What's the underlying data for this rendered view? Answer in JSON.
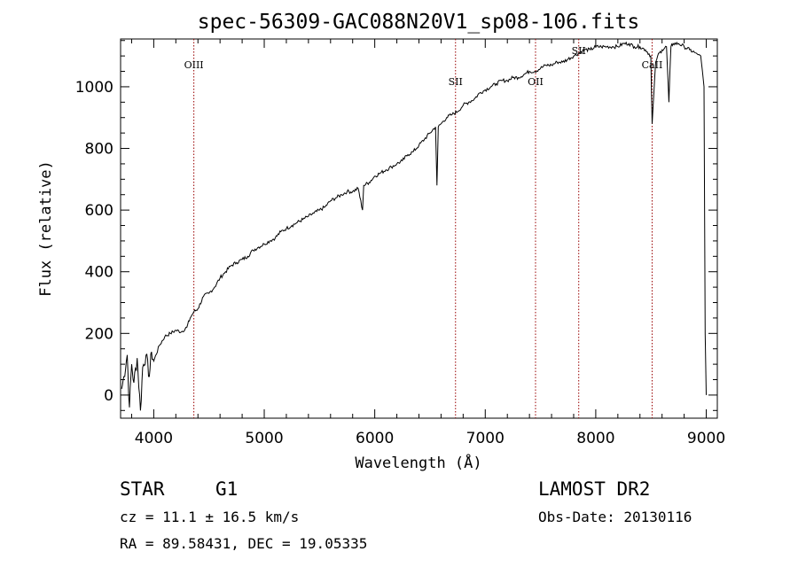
{
  "chart_data": {
    "type": "line",
    "title": "spec-56309-GAC088N20V1_sp08-106.fits",
    "xlabel": "Wavelength (Å)",
    "ylabel": "Flux (relative)",
    "xlim": [
      3700,
      9100
    ],
    "ylim": [
      -75,
      1155
    ],
    "x_ticks": [
      4000,
      5000,
      6000,
      7000,
      8000,
      9000
    ],
    "y_ticks": [
      0,
      200,
      400,
      600,
      800,
      1000
    ],
    "grid": false,
    "line_color": "#000000",
    "spectral_lines": [
      {
        "name": "OIII",
        "wavelength": 4363
      },
      {
        "name": "SII",
        "wavelength": 6731
      },
      {
        "name": "OII",
        "wavelength": 7455
      },
      {
        "name": "SII",
        "wavelength": 7846
      },
      {
        "name": "CaII",
        "wavelength": 8510
      }
    ],
    "spectral_line_color": "#990000",
    "series": [
      {
        "x": [
          3710,
          3730,
          3760,
          3780,
          3800,
          3820,
          3850,
          3880,
          3900,
          3930,
          3960,
          3980,
          4000,
          4050,
          4100,
          4150,
          4200,
          4250,
          4300,
          4330,
          4363,
          4400,
          4450,
          4500,
          4550,
          4600,
          4650,
          4700,
          4750,
          4800,
          4850,
          4900,
          4950,
          5000,
          5050,
          5100,
          5150,
          5200,
          5250,
          5300,
          5350,
          5400,
          5450,
          5500,
          5550,
          5600,
          5650,
          5700,
          5750,
          5800,
          5850,
          5890,
          5900,
          5950,
          6000,
          6050,
          6100,
          6150,
          6200,
          6250,
          6300,
          6350,
          6400,
          6450,
          6500,
          6550,
          6563,
          6575,
          6600,
          6650,
          6700,
          6750,
          6800,
          6850,
          6900,
          6950,
          7000,
          7050,
          7100,
          7150,
          7200,
          7250,
          7300,
          7350,
          7400,
          7450,
          7500,
          7550,
          7600,
          7650,
          7700,
          7750,
          7800,
          7850,
          7900,
          7950,
          8000,
          8050,
          8100,
          8150,
          8200,
          8250,
          8300,
          8350,
          8400,
          8450,
          8498,
          8510,
          8542,
          8560,
          8600,
          8640,
          8662,
          8680,
          8700,
          8750,
          8800,
          8850,
          8900,
          8950,
          8980,
          8990,
          9000
        ],
        "y": [
          20,
          60,
          130,
          -40,
          100,
          40,
          120,
          -50,
          90,
          130,
          60,
          140,
          110,
          160,
          190,
          200,
          210,
          205,
          220,
          250,
          270,
          280,
          320,
          330,
          350,
          380,
          400,
          420,
          430,
          440,
          450,
          470,
          480,
          490,
          500,
          510,
          530,
          540,
          550,
          560,
          570,
          580,
          590,
          600,
          610,
          630,
          640,
          650,
          660,
          660,
          670,
          600,
          680,
          690,
          710,
          720,
          730,
          740,
          750,
          760,
          780,
          790,
          810,
          830,
          850,
          870,
          680,
          870,
          880,
          900,
          910,
          920,
          940,
          950,
          960,
          980,
          990,
          1000,
          1010,
          1020,
          1020,
          1030,
          1030,
          1040,
          1050,
          1050,
          1060,
          1070,
          1070,
          1080,
          1080,
          1090,
          1100,
          1110,
          1120,
          1120,
          1130,
          1130,
          1130,
          1130,
          1130,
          1140,
          1140,
          1130,
          1130,
          1120,
          1100,
          880,
          1080,
          1100,
          1120,
          1130,
          950,
          1130,
          1140,
          1140,
          1130,
          1120,
          1110,
          1100,
          1000,
          200,
          0
        ]
      }
    ]
  },
  "footer": {
    "object_class": "STAR",
    "subclass": "G1",
    "redshift": "cz = 11.1 ± 16.5 km/s",
    "coords": "RA =  89.58431, DEC =  19.05335",
    "survey": "LAMOST DR2",
    "obs_date": "Obs-Date: 20130116"
  }
}
